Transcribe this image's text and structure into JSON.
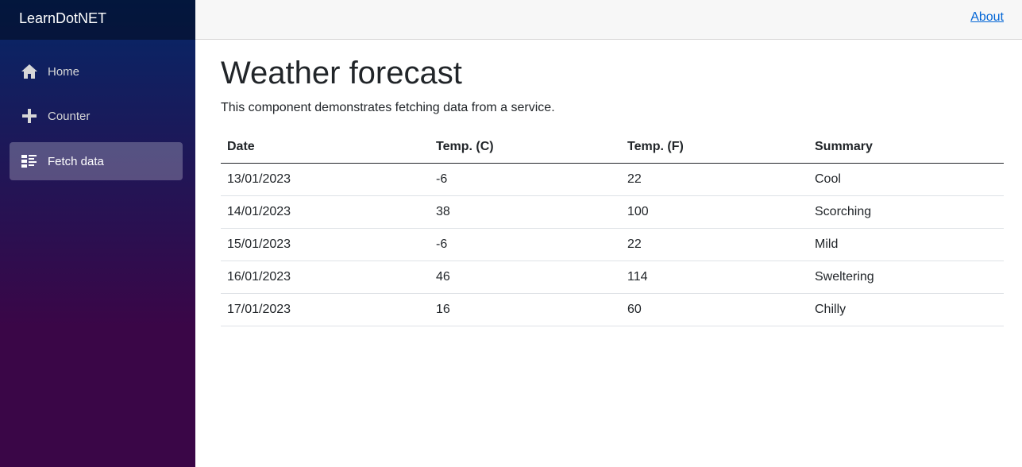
{
  "sidebar": {
    "brand": "LearnDotNET",
    "nav": [
      {
        "label": "Home"
      },
      {
        "label": "Counter"
      },
      {
        "label": "Fetch data"
      }
    ]
  },
  "topbar": {
    "link": "About"
  },
  "main": {
    "title": "Weather forecast",
    "description": "This component demonstrates fetching data from a service.",
    "table": {
      "headers": [
        "Date",
        "Temp. (C)",
        "Temp. (F)",
        "Summary"
      ],
      "rows": [
        [
          "13/01/2023",
          "-6",
          "22",
          "Cool"
        ],
        [
          "14/01/2023",
          "38",
          "100",
          "Scorching"
        ],
        [
          "15/01/2023",
          "-6",
          "22",
          "Mild"
        ],
        [
          "16/01/2023",
          "46",
          "114",
          "Sweltering"
        ],
        [
          "17/01/2023",
          "16",
          "60",
          "Chilly"
        ]
      ]
    }
  }
}
